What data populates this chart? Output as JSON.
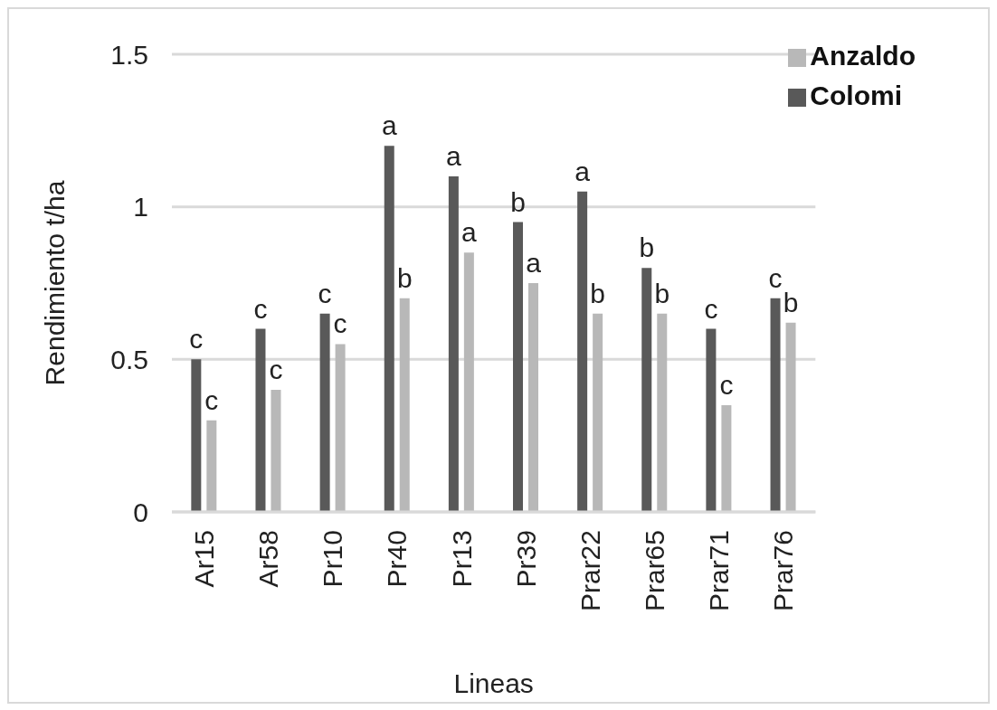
{
  "chart_data": {
    "type": "bar",
    "xlabel": "Lineas",
    "ylabel": "Rendimiento t/ha",
    "categories": [
      "Ar15",
      "Ar58",
      "Pr10",
      "Pr40",
      "Pr13",
      "Pr39",
      "Prar22",
      "Prar65",
      "Prar71",
      "Prar76"
    ],
    "series": [
      {
        "name": "Colomi",
        "color": "#595959",
        "values": [
          0.5,
          0.6,
          0.65,
          1.2,
          1.1,
          0.95,
          1.05,
          0.8,
          0.6,
          0.7
        ],
        "value_labels": [
          "c",
          "c",
          "c",
          "a",
          "a",
          "b",
          "a",
          "b",
          "c",
          "c"
        ]
      },
      {
        "name": "Anzaldo",
        "color": "#b8b8b8",
        "values": [
          0.3,
          0.4,
          0.55,
          0.7,
          0.85,
          0.75,
          0.65,
          0.65,
          0.35,
          0.62
        ],
        "value_labels": [
          "c",
          "c",
          "c",
          "b",
          "a",
          "a",
          "b",
          "b",
          "c",
          "b"
        ]
      }
    ],
    "ylim": [
      0,
      1.5
    ],
    "yticks": [
      0,
      0.5,
      1,
      1.5
    ],
    "grid": "y",
    "legend": "top right"
  }
}
